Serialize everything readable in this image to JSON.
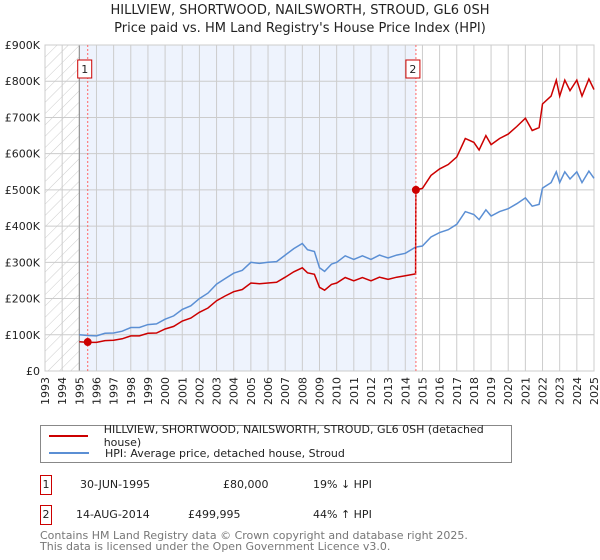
{
  "chart_data": {
    "type": "line",
    "title": "HILLVIEW, SHORTWOOD, NAILSWORTH, STROUD, GL6 0SH",
    "subtitle": "Price paid vs. HM Land Registry's House Price Index (HPI)",
    "xlim": [
      1993,
      2025
    ],
    "ylim": [
      0,
      900000
    ],
    "x_ticks": [
      "1993",
      "1994",
      "1995",
      "1996",
      "1997",
      "1998",
      "1999",
      "2000",
      "2001",
      "2002",
      "2003",
      "2004",
      "2005",
      "2006",
      "2007",
      "2008",
      "2009",
      "2010",
      "2011",
      "2012",
      "2013",
      "2014",
      "2015",
      "2016",
      "2017",
      "2018",
      "2019",
      "2020",
      "2021",
      "2022",
      "2023",
      "2024",
      "2025"
    ],
    "y_ticks": [
      {
        "v": 0,
        "label": "£0"
      },
      {
        "v": 100000,
        "label": "£100K"
      },
      {
        "v": 200000,
        "label": "£200K"
      },
      {
        "v": 300000,
        "label": "£300K"
      },
      {
        "v": 400000,
        "label": "£400K"
      },
      {
        "v": 500000,
        "label": "£500K"
      },
      {
        "v": 600000,
        "label": "£600K"
      },
      {
        "v": 700000,
        "label": "£700K"
      },
      {
        "v": 800000,
        "label": "£800K"
      },
      {
        "v": 900000,
        "label": "£900K"
      }
    ],
    "grid": true,
    "colors": {
      "property": "#cc0000",
      "hpi": "#5b8fd4",
      "shade": "#eef3fd"
    },
    "series": [
      {
        "name": "HILLVIEW, SHORTWOOD, NAILSWORTH, STROUD, GL6 0SH (detached house)",
        "color": "#cc0000",
        "x": [
          1995.0,
          1995.5,
          1996,
          1996.5,
          1997,
          1997.5,
          1998,
          1998.5,
          1999,
          1999.5,
          2000,
          2000.5,
          2001,
          2001.5,
          2002,
          2002.5,
          2003,
          2003.5,
          2004,
          2004.5,
          2005,
          2005.5,
          2006,
          2006.5,
          2007,
          2007.5,
          2008,
          2008.3,
          2008.7,
          2009,
          2009.3,
          2009.7,
          2010,
          2010.5,
          2011,
          2011.5,
          2012,
          2012.5,
          2013,
          2013.5,
          2014,
          2014.6,
          2014.62,
          2015,
          2015.5,
          2016,
          2016.5,
          2017,
          2017.5,
          2018,
          2018.3,
          2018.7,
          2019,
          2019.5,
          2020,
          2020.5,
          2021,
          2021.4,
          2021.8,
          2022,
          2022.5,
          2022.8,
          2023,
          2023.3,
          2023.6,
          2024,
          2024.3,
          2024.7,
          2025
        ],
        "y": [
          81,
          79,
          79,
          84,
          85,
          89,
          97,
          97,
          104,
          105,
          116,
          123,
          138,
          146,
          162,
          174,
          194,
          207,
          219,
          225,
          243,
          241,
          243,
          245,
          259,
          274,
          285,
          271,
          267,
          231,
          223,
          239,
          243,
          258,
          249,
          258,
          249,
          259,
          253,
          259,
          263,
          268,
          500,
          504,
          540,
          558,
          570,
          591,
          642,
          631,
          610,
          650,
          625,
          642,
          654,
          675,
          698,
          664,
          672,
          737,
          759,
          803,
          759,
          803,
          774,
          803,
          759,
          806,
          777
        ]
      },
      {
        "name": "HPI: Average price, detached house, Stroud",
        "color": "#5b8fd4",
        "x": [
          1995.0,
          1995.5,
          1996,
          1996.5,
          1997,
          1997.5,
          1998,
          1998.5,
          1999,
          1999.5,
          2000,
          2000.5,
          2001,
          2001.5,
          2002,
          2002.5,
          2003,
          2003.5,
          2004,
          2004.5,
          2005,
          2005.5,
          2006,
          2006.5,
          2007,
          2007.5,
          2008,
          2008.3,
          2008.7,
          2009,
          2009.3,
          2009.7,
          2010,
          2010.5,
          2011,
          2011.5,
          2012,
          2012.5,
          2013,
          2013.5,
          2014,
          2014.6,
          2015,
          2015.5,
          2016,
          2016.5,
          2017,
          2017.5,
          2018,
          2018.3,
          2018.7,
          2019,
          2019.5,
          2020,
          2020.5,
          2021,
          2021.4,
          2021.8,
          2022,
          2022.5,
          2022.8,
          2023,
          2023.3,
          2023.6,
          2024,
          2024.3,
          2024.7,
          2025
        ],
        "y": [
          100,
          98,
          97,
          104,
          105,
          110,
          120,
          120,
          128,
          130,
          143,
          152,
          170,
          180,
          200,
          215,
          240,
          255,
          270,
          278,
          300,
          297,
          300,
          302,
          320,
          338,
          352,
          335,
          330,
          285,
          275,
          295,
          300,
          318,
          308,
          318,
          308,
          320,
          312,
          320,
          325,
          342,
          345,
          370,
          382,
          390,
          405,
          440,
          432,
          418,
          445,
          428,
          440,
          448,
          462,
          478,
          455,
          460,
          505,
          520,
          550,
          520,
          550,
          530,
          550,
          520,
          552,
          532
        ]
      }
    ],
    "y_unit": "thousands GBP",
    "sales": [
      {
        "id": "1",
        "x": 1995.49,
        "y": 80000,
        "date": "30-JUN-1995",
        "price": "£80,000",
        "hpi": "19% ↓ HPI"
      },
      {
        "id": "2",
        "x": 2014.62,
        "y": 499995,
        "date": "14-AUG-2014",
        "price": "£499,995",
        "hpi": "44% ↑ HPI"
      }
    ],
    "hatched_until": 1995,
    "shaded_range": [
      1995,
      2014.62
    ],
    "legend_placement": "below"
  },
  "footer": {
    "line1": "Contains HM Land Registry data © Crown copyright and database right 2025.",
    "line2": "This data is licensed under the Open Government Licence v3.0."
  }
}
